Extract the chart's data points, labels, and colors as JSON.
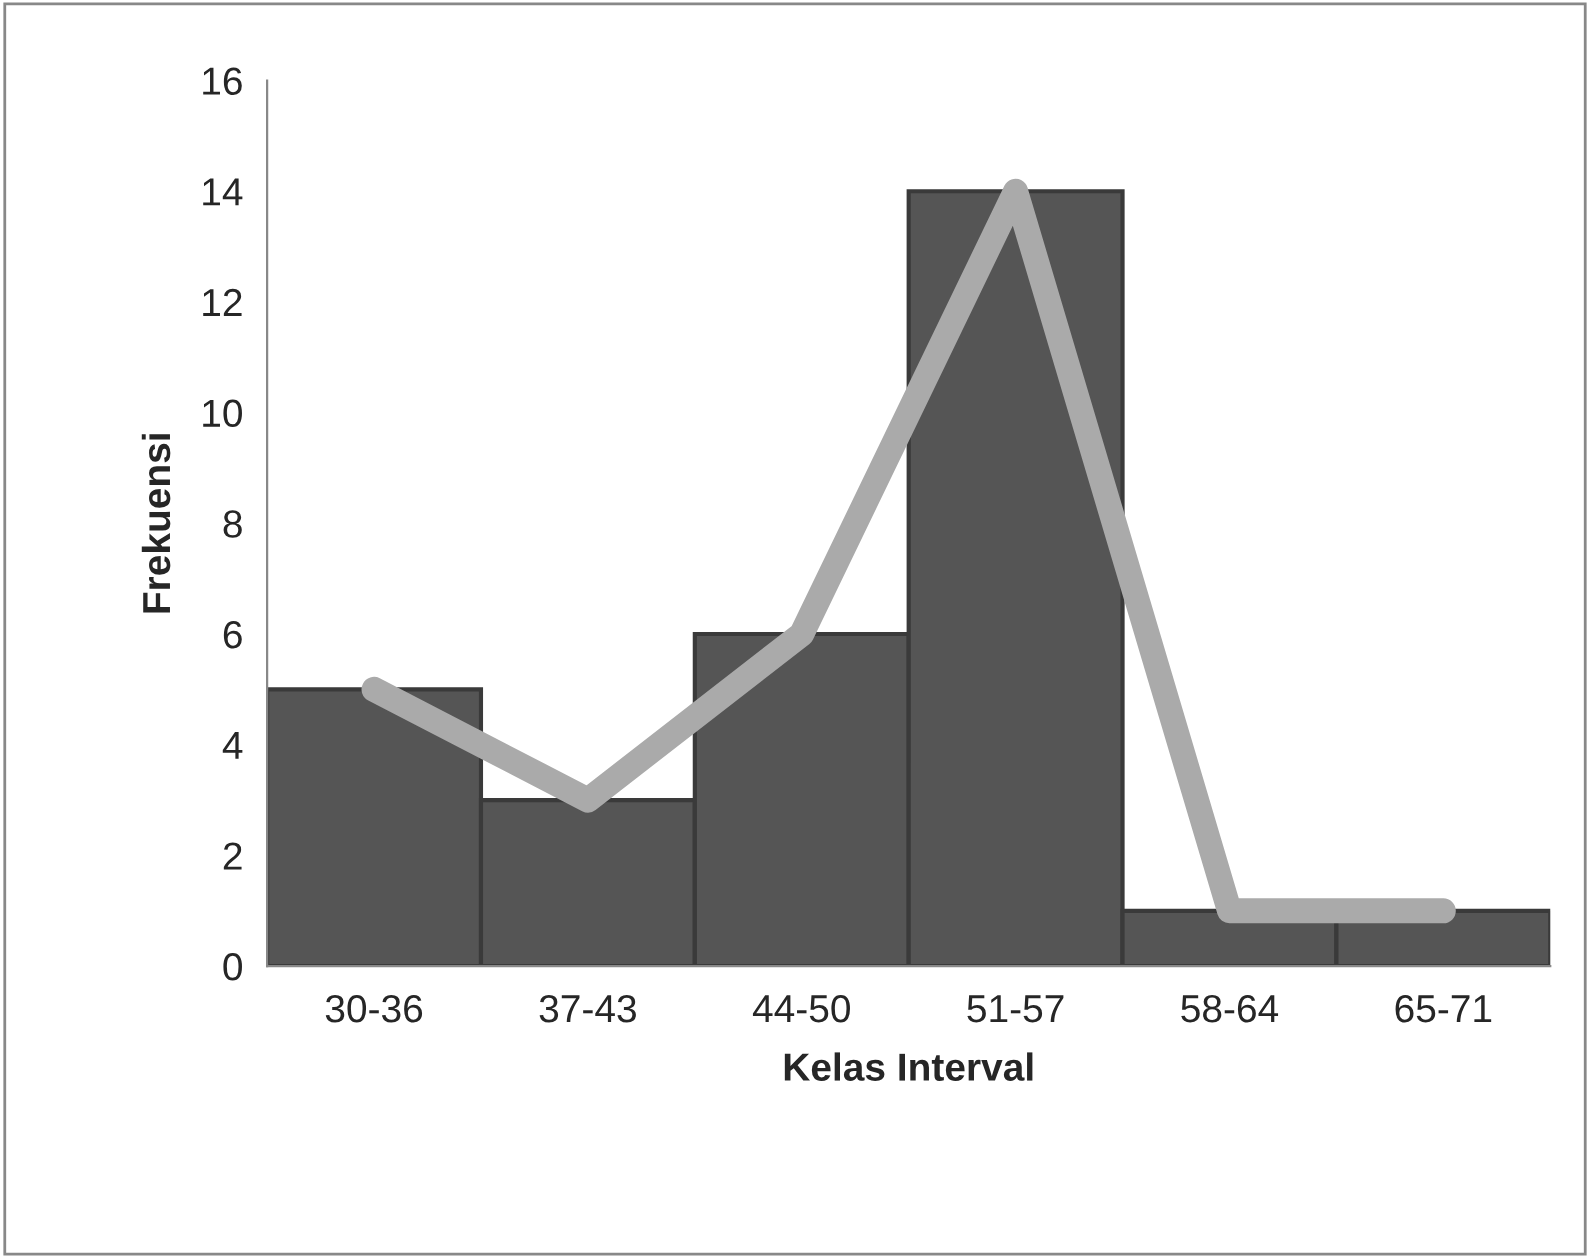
{
  "chart_data": {
    "type": "bar",
    "xlabel": "Kelas Interval",
    "ylabel": "Frekuensi",
    "categories": [
      "30-36",
      "37-43",
      "44-50",
      "51-57",
      "58-64",
      "65-71"
    ],
    "series": [
      {
        "color": "#555555",
        "values": [
          5,
          3,
          6,
          14,
          1,
          1
        ]
      },
      {
        "type": "line",
        "color": "#aaaaaa",
        "values": [
          5,
          3,
          6,
          14,
          1,
          1
        ]
      }
    ],
    "ylim": [
      0,
      16
    ],
    "yticks": [
      0,
      2,
      4,
      6,
      8,
      10,
      12,
      14,
      16
    ],
    "grid": false,
    "legend": false,
    "line_style": "solid"
  }
}
